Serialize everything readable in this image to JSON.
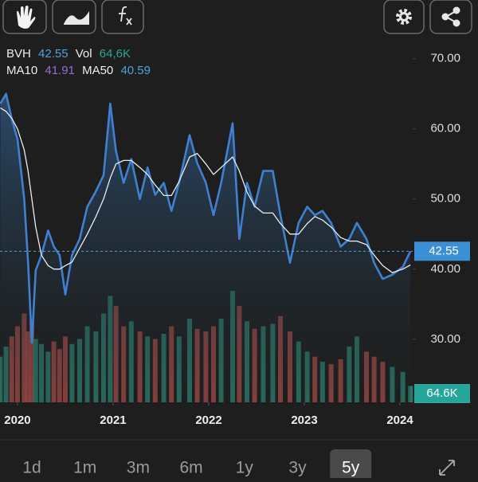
{
  "chart_data": {
    "type": "line",
    "x": [
      2019.82,
      2019.88,
      2019.94,
      2020,
      2020.07,
      2020.11,
      2020.15,
      2020.19,
      2020.25,
      2020.32,
      2020.38,
      2020.44,
      2020.5,
      2020.57,
      2020.65,
      2020.73,
      2020.82,
      2020.9,
      2020.97,
      2021.03,
      2021.11,
      2021.19,
      2021.28,
      2021.36,
      2021.44,
      2021.53,
      2021.61,
      2021.69,
      2021.8,
      2021.88,
      2021.97,
      2022.05,
      2022.13,
      2022.25,
      2022.32,
      2022.4,
      2022.48,
      2022.57,
      2022.67,
      2022.75,
      2022.85,
      2022.94,
      2023.03,
      2023.11,
      2023.19,
      2023.28,
      2023.38,
      2023.47,
      2023.55,
      2023.65,
      2023.73,
      2023.82,
      2023.92,
      2024.03,
      2024.11
    ],
    "series": [
      {
        "name": "BVH",
        "color": "#3f80d2",
        "values": [
          63.6,
          65,
          61.4,
          58.5,
          50,
          41,
          29.5,
          39.8,
          42,
          45.5,
          43.2,
          42,
          36.4,
          42,
          44.3,
          48.9,
          51.1,
          53.4,
          63.6,
          56.8,
          52.3,
          55.7,
          50,
          54.5,
          50.6,
          52.3,
          48.3,
          52.3,
          59.1,
          55.1,
          52.3,
          47.7,
          52.3,
          60.8,
          44.3,
          52.3,
          48.9,
          54,
          54,
          47.7,
          40.9,
          46.6,
          48.9,
          47.7,
          48.3,
          46.6,
          43.2,
          44.3,
          46.6,
          44.3,
          40.9,
          38.6,
          39.2,
          40.3,
          42.55
        ]
      },
      {
        "name": "MA50",
        "color": "#e8eef4",
        "values": [
          63,
          62.5,
          61.5,
          60,
          57,
          54,
          50,
          46,
          42,
          40.5,
          40,
          40,
          40.5,
          41,
          43,
          45,
          47.5,
          50,
          53,
          55,
          55.5,
          55.5,
          54.5,
          53.5,
          52,
          50.5,
          50.5,
          52.5,
          56,
          56.5,
          55,
          53.5,
          54.5,
          56,
          54,
          51,
          49,
          48,
          48,
          46.5,
          45,
          45,
          46.5,
          47.5,
          47,
          46,
          44.5,
          44,
          44,
          43.5,
          42,
          40.5,
          39.5,
          40,
          40.59
        ]
      }
    ],
    "ma10": {
      "name": "MA10",
      "value": 41.91,
      "color": "#9a6bd8"
    },
    "volume": {
      "name": "Vol",
      "legend_label": "64,6K",
      "last_label": "64.6K",
      "color": "#26a69a",
      "up_color": "#2e8f7c",
      "down_color": "#b8514d",
      "values": [
        180000,
        220000,
        260000,
        300000,
        350000,
        280000,
        320000,
        250000,
        230000,
        200000,
        240000,
        210000,
        260000,
        230000,
        250000,
        300000,
        280000,
        350000,
        420000,
        380000,
        300000,
        320000,
        280000,
        260000,
        250000,
        270000,
        300000,
        260000,
        330000,
        290000,
        280000,
        300000,
        330000,
        440000,
        380000,
        320000,
        290000,
        300000,
        310000,
        340000,
        280000,
        240000,
        200000,
        180000,
        160000,
        150000,
        170000,
        220000,
        260000,
        200000,
        180000,
        160000,
        140000,
        120000,
        64600
      ]
    },
    "xlim": [
      2019.817,
      2024.133
    ],
    "xticks": [
      2020,
      2021,
      2022,
      2023,
      2024
    ],
    "ylim": [
      21.0,
      72.7
    ],
    "yticks": [
      {
        "value": 30,
        "label": "30.00"
      },
      {
        "value": 40,
        "label": "40.00"
      },
      {
        "value": 50,
        "label": "50.00"
      },
      {
        "value": 60,
        "label": "60.00"
      },
      {
        "value": 70,
        "label": "70.00"
      }
    ],
    "price_line": true
  },
  "range_buttons": [
    "1d",
    "1m",
    "3m",
    "6m",
    "1y",
    "3y",
    "5y"
  ],
  "selected_range": 6
}
